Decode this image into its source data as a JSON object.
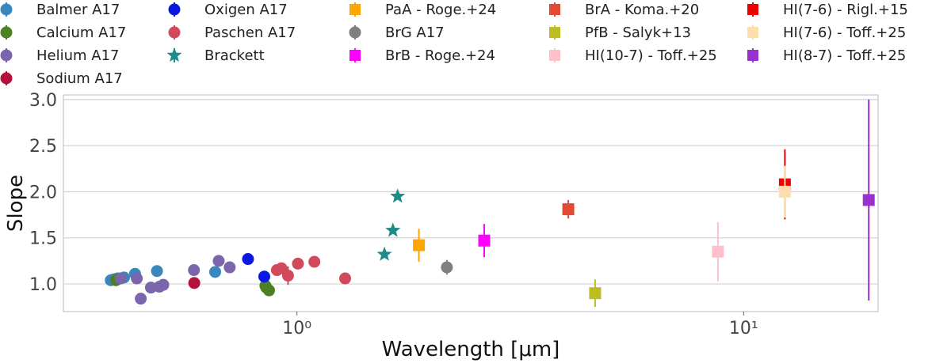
{
  "chart_data": {
    "type": "scatter",
    "xlabel": "Wavelength [μm]",
    "ylabel": "Slope",
    "xscale": "log",
    "xlim": [
      0.3,
      20
    ],
    "ylim": [
      0.7,
      3.05
    ],
    "xticks": [
      {
        "value": 1,
        "label": "10⁰"
      },
      {
        "value": 10,
        "label": "10¹"
      }
    ],
    "yticks": [
      1.0,
      1.5,
      2.0,
      2.5,
      3.0
    ],
    "ytick_labels": [
      "1.0",
      "1.5",
      "2.0",
      "2.5",
      "3.0"
    ],
    "grid": "horizontal",
    "legend_position": "top",
    "series": [
      {
        "name": "Balmer A17",
        "marker": "circle",
        "color": "#3a87bd",
        "points": [
          {
            "x": 0.383,
            "y": 1.04,
            "err": 0.03
          },
          {
            "x": 0.389,
            "y": 1.05,
            "err": 0.03
          },
          {
            "x": 0.397,
            "y": 1.06,
            "err": 0.03
          },
          {
            "x": 0.41,
            "y": 1.07,
            "err": 0.03
          },
          {
            "x": 0.434,
            "y": 1.11,
            "err": 0.03
          },
          {
            "x": 0.486,
            "y": 1.14,
            "err": 0.03
          },
          {
            "x": 0.656,
            "y": 1.13,
            "err": 0.03
          }
        ]
      },
      {
        "name": "Calcium A17",
        "marker": "circle",
        "color": "#4d7f23",
        "points": [
          {
            "x": 0.3934,
            "y": 1.04,
            "err": 0.03
          },
          {
            "x": 0.3968,
            "y": 1.05,
            "err": 0.03
          },
          {
            "x": 0.85,
            "y": 0.98,
            "err": 0.03
          },
          {
            "x": 0.854,
            "y": 0.96,
            "err": 0.03
          },
          {
            "x": 0.866,
            "y": 0.93,
            "err": 0.03
          }
        ]
      },
      {
        "name": "Helium A17",
        "marker": "circle",
        "color": "#7b66ad",
        "points": [
          {
            "x": 0.403,
            "y": 1.06,
            "err": 0.03
          },
          {
            "x": 0.438,
            "y": 1.06,
            "err": 0.03
          },
          {
            "x": 0.447,
            "y": 0.84,
            "err": 0.04
          },
          {
            "x": 0.471,
            "y": 0.96,
            "err": 0.03
          },
          {
            "x": 0.492,
            "y": 0.97,
            "err": 0.03
          },
          {
            "x": 0.502,
            "y": 0.99,
            "err": 0.03
          },
          {
            "x": 0.588,
            "y": 1.15,
            "err": 0.03
          },
          {
            "x": 0.668,
            "y": 1.25,
            "err": 0.03
          },
          {
            "x": 0.707,
            "y": 1.18,
            "err": 0.03
          }
        ]
      },
      {
        "name": "Sodium A17",
        "marker": "circle",
        "color": "#b5123b",
        "points": [
          {
            "x": 0.589,
            "y": 1.01,
            "err": 0.03
          }
        ]
      },
      {
        "name": "Oxigen A17",
        "marker": "circle",
        "color": "#0a18e0",
        "points": [
          {
            "x": 0.777,
            "y": 1.27,
            "err": 0.05
          },
          {
            "x": 0.845,
            "y": 1.08,
            "err": 0.04
          }
        ]
      },
      {
        "name": "Paschen A17",
        "marker": "circle",
        "color": "#d1495b",
        "points": [
          {
            "x": 0.902,
            "y": 1.15,
            "err": 0.05
          },
          {
            "x": 0.923,
            "y": 1.17,
            "err": 0.05
          },
          {
            "x": 0.955,
            "y": 1.09,
            "err": 0.1
          },
          {
            "x": 1.005,
            "y": 1.22,
            "err": 0.06
          },
          {
            "x": 1.094,
            "y": 1.24,
            "err": 0.04
          },
          {
            "x": 1.282,
            "y": 1.06,
            "err": 0.04
          }
        ]
      },
      {
        "name": "Brackett",
        "marker": "star",
        "color": "#1f8a8a",
        "points": [
          {
            "x": 1.57,
            "y": 1.32
          },
          {
            "x": 1.64,
            "y": 1.58
          },
          {
            "x": 1.68,
            "y": 1.95
          }
        ]
      },
      {
        "name": "PaA - Roge.+24",
        "marker": "square",
        "color": "#ffa500",
        "points": [
          {
            "x": 1.875,
            "y": 1.42,
            "err": 0.18
          }
        ]
      },
      {
        "name": "BrG A17",
        "marker": "circle",
        "color": "#808080",
        "points": [
          {
            "x": 2.166,
            "y": 1.18,
            "err": 0.08
          }
        ]
      },
      {
        "name": "BrB - Roge.+24",
        "marker": "square",
        "color": "#ff00ff",
        "points": [
          {
            "x": 2.626,
            "y": 1.47,
            "err": 0.18
          }
        ]
      },
      {
        "name": "BrA - Koma.+20",
        "marker": "square",
        "color": "#e24a33",
        "points": [
          {
            "x": 4.05,
            "y": 1.81,
            "err": 0.1
          }
        ]
      },
      {
        "name": "PfB - Salyk+13",
        "marker": "square",
        "color": "#bcbd22",
        "points": [
          {
            "x": 4.65,
            "y": 0.9,
            "err": 0.15
          }
        ]
      },
      {
        "name": "HI(10-7) - Toff.+25",
        "marker": "square",
        "color": "#ffc0cb",
        "points": [
          {
            "x": 8.76,
            "y": 1.35,
            "err": 0.32
          }
        ]
      },
      {
        "name": "HI(7-6) - Rigl.+15",
        "marker": "square",
        "color": "#ee0000",
        "points": [
          {
            "x": 12.37,
            "y": 2.08,
            "err": 0.38
          }
        ]
      },
      {
        "name": "HI(7-6) - Toff.+25",
        "marker": "square",
        "color": "#ffdead",
        "points": [
          {
            "x": 12.37,
            "y": 2.0,
            "err": 0.28
          }
        ]
      },
      {
        "name": "HI(8-7) - Toff.+25",
        "marker": "square",
        "color": "#9932cc",
        "points": [
          {
            "x": 19.06,
            "y": 1.91,
            "err": 1.09
          }
        ]
      }
    ],
    "legend_order": [
      "Balmer A17",
      "Calcium A17",
      "Helium A17",
      "Sodium A17",
      "Oxigen A17",
      "Paschen A17",
      "Brackett",
      "PaA - Roge.+24",
      "BrG A17",
      "BrB - Roge.+24",
      "BrA - Koma.+20",
      "PfB - Salyk+13",
      "HI(10-7) - Toff.+25",
      "HI(7-6) - Rigl.+15",
      "HI(7-6) - Toff.+25",
      "HI(8-7) - Toff.+25"
    ]
  }
}
